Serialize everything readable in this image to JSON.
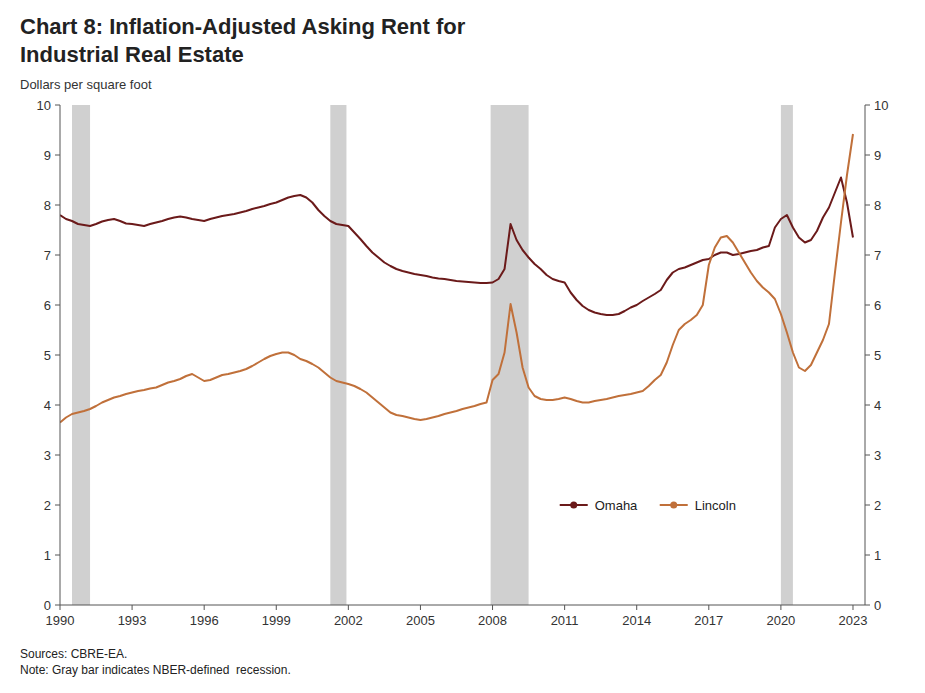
{
  "chart_data": {
    "type": "line",
    "title": "Chart 8: Inflation-Adjusted Asking Rent for\nIndustrial Real Estate",
    "y_label": "Dollars per square foot",
    "source": "Sources: CBRE-EA.\nNote: Gray bar indicates NBER-defined  recession.",
    "xlim": [
      1990.0,
      2023.5
    ],
    "ylim": [
      0,
      10
    ],
    "y2lim": [
      0,
      10
    ],
    "xticks": [
      1990,
      1993,
      1996,
      1999,
      2002,
      2005,
      2008,
      2011,
      2014,
      2017,
      2020,
      2023
    ],
    "yticks": [
      0,
      1,
      2,
      3,
      4,
      5,
      6,
      7,
      8,
      9,
      10
    ],
    "y2ticks": [
      0,
      1,
      2,
      3,
      4,
      5,
      6,
      7,
      8,
      9,
      10
    ],
    "grid": false,
    "legend": "bottom",
    "shading": {
      "color": "#D0D0D0",
      "periods": [
        [
          1990.5,
          1991.25
        ],
        [
          2001.25,
          2001.92
        ],
        [
          2007.92,
          2009.5
        ],
        [
          2020.0,
          2020.5
        ]
      ]
    },
    "x": [
      1990.0,
      1990.25,
      1990.5,
      1990.75,
      1991.0,
      1991.25,
      1991.5,
      1991.75,
      1992.0,
      1992.25,
      1992.5,
      1992.75,
      1993.0,
      1993.25,
      1993.5,
      1993.75,
      1994.0,
      1994.25,
      1994.5,
      1994.75,
      1995.0,
      1995.25,
      1995.5,
      1995.75,
      1996.0,
      1996.25,
      1996.5,
      1996.75,
      1997.0,
      1997.25,
      1997.5,
      1997.75,
      1998.0,
      1998.25,
      1998.5,
      1998.75,
      1999.0,
      1999.25,
      1999.5,
      1999.75,
      2000.0,
      2000.25,
      2000.5,
      2000.75,
      2001.0,
      2001.25,
      2001.5,
      2001.75,
      2002.0,
      2002.25,
      2002.5,
      2002.75,
      2003.0,
      2003.25,
      2003.5,
      2003.75,
      2004.0,
      2004.25,
      2004.5,
      2004.75,
      2005.0,
      2005.25,
      2005.5,
      2005.75,
      2006.0,
      2006.25,
      2006.5,
      2006.75,
      2007.0,
      2007.25,
      2007.5,
      2007.75,
      2008.0,
      2008.25,
      2008.5,
      2008.75,
      2009.0,
      2009.25,
      2009.5,
      2009.75,
      2010.0,
      2010.25,
      2010.5,
      2010.75,
      2011.0,
      2011.25,
      2011.5,
      2011.75,
      2012.0,
      2012.25,
      2012.5,
      2012.75,
      2013.0,
      2013.25,
      2013.5,
      2013.75,
      2014.0,
      2014.25,
      2014.5,
      2014.75,
      2015.0,
      2015.25,
      2015.5,
      2015.75,
      2016.0,
      2016.25,
      2016.5,
      2016.75,
      2017.0,
      2017.25,
      2017.5,
      2017.75,
      2018.0,
      2018.25,
      2018.5,
      2018.75,
      2019.0,
      2019.25,
      2019.5,
      2019.75,
      2020.0,
      2020.25,
      2020.5,
      2020.75,
      2021.0,
      2021.25,
      2021.5,
      2021.75,
      2022.0,
      2022.25,
      2022.5,
      2022.75,
      2023.0
    ],
    "series": [
      {
        "name": "Omaha",
        "color": "#6B1A1A",
        "values": [
          7.8,
          7.72,
          7.68,
          7.62,
          7.6,
          7.58,
          7.62,
          7.67,
          7.7,
          7.72,
          7.68,
          7.63,
          7.62,
          7.6,
          7.58,
          7.62,
          7.65,
          7.68,
          7.72,
          7.75,
          7.77,
          7.75,
          7.72,
          7.7,
          7.68,
          7.72,
          7.75,
          7.78,
          7.8,
          7.82,
          7.85,
          7.88,
          7.92,
          7.95,
          7.98,
          8.02,
          8.05,
          8.1,
          8.15,
          8.18,
          8.2,
          8.15,
          8.05,
          7.9,
          7.78,
          7.68,
          7.62,
          7.6,
          7.58,
          7.45,
          7.32,
          7.18,
          7.05,
          6.95,
          6.85,
          6.78,
          6.72,
          6.68,
          6.65,
          6.62,
          6.6,
          6.58,
          6.55,
          6.53,
          6.52,
          6.5,
          6.48,
          6.47,
          6.46,
          6.45,
          6.44,
          6.44,
          6.45,
          6.52,
          6.72,
          7.62,
          7.3,
          7.1,
          6.95,
          6.82,
          6.72,
          6.6,
          6.52,
          6.48,
          6.45,
          6.25,
          6.1,
          5.98,
          5.9,
          5.85,
          5.82,
          5.8,
          5.8,
          5.82,
          5.88,
          5.95,
          6.0,
          6.08,
          6.15,
          6.22,
          6.3,
          6.5,
          6.65,
          6.72,
          6.75,
          6.8,
          6.85,
          6.9,
          6.92,
          7.0,
          7.05,
          7.05,
          7.0,
          7.02,
          7.05,
          7.08,
          7.1,
          7.15,
          7.18,
          7.55,
          7.72,
          7.8,
          7.55,
          7.35,
          7.25,
          7.3,
          7.48,
          7.75,
          7.95,
          8.25,
          8.55,
          8.05,
          7.35
        ]
      },
      {
        "name": "Lincoln",
        "color": "#C0703A",
        "values": [
          3.65,
          3.75,
          3.82,
          3.85,
          3.88,
          3.92,
          3.98,
          4.05,
          4.1,
          4.15,
          4.18,
          4.22,
          4.25,
          4.28,
          4.3,
          4.33,
          4.35,
          4.4,
          4.45,
          4.48,
          4.52,
          4.58,
          4.62,
          4.55,
          4.48,
          4.5,
          4.55,
          4.6,
          4.62,
          4.65,
          4.68,
          4.72,
          4.78,
          4.85,
          4.92,
          4.98,
          5.02,
          5.05,
          5.05,
          5.0,
          4.92,
          4.88,
          4.82,
          4.75,
          4.65,
          4.55,
          4.48,
          4.45,
          4.42,
          4.38,
          4.32,
          4.25,
          4.15,
          4.05,
          3.95,
          3.85,
          3.8,
          3.78,
          3.75,
          3.72,
          3.7,
          3.72,
          3.75,
          3.78,
          3.82,
          3.85,
          3.88,
          3.92,
          3.95,
          3.98,
          4.02,
          4.05,
          4.5,
          4.62,
          5.05,
          6.02,
          5.45,
          4.75,
          4.35,
          4.18,
          4.12,
          4.1,
          4.1,
          4.12,
          4.15,
          4.12,
          4.08,
          4.05,
          4.05,
          4.08,
          4.1,
          4.12,
          4.15,
          4.18,
          4.2,
          4.22,
          4.25,
          4.28,
          4.38,
          4.5,
          4.6,
          4.85,
          5.2,
          5.5,
          5.62,
          5.7,
          5.8,
          6.0,
          6.8,
          7.15,
          7.35,
          7.38,
          7.25,
          7.05,
          6.85,
          6.65,
          6.48,
          6.35,
          6.25,
          6.12,
          5.82,
          5.45,
          5.05,
          4.75,
          4.68,
          4.8,
          5.05,
          5.3,
          5.62,
          6.65,
          7.65,
          8.6,
          9.42
        ]
      }
    ]
  }
}
